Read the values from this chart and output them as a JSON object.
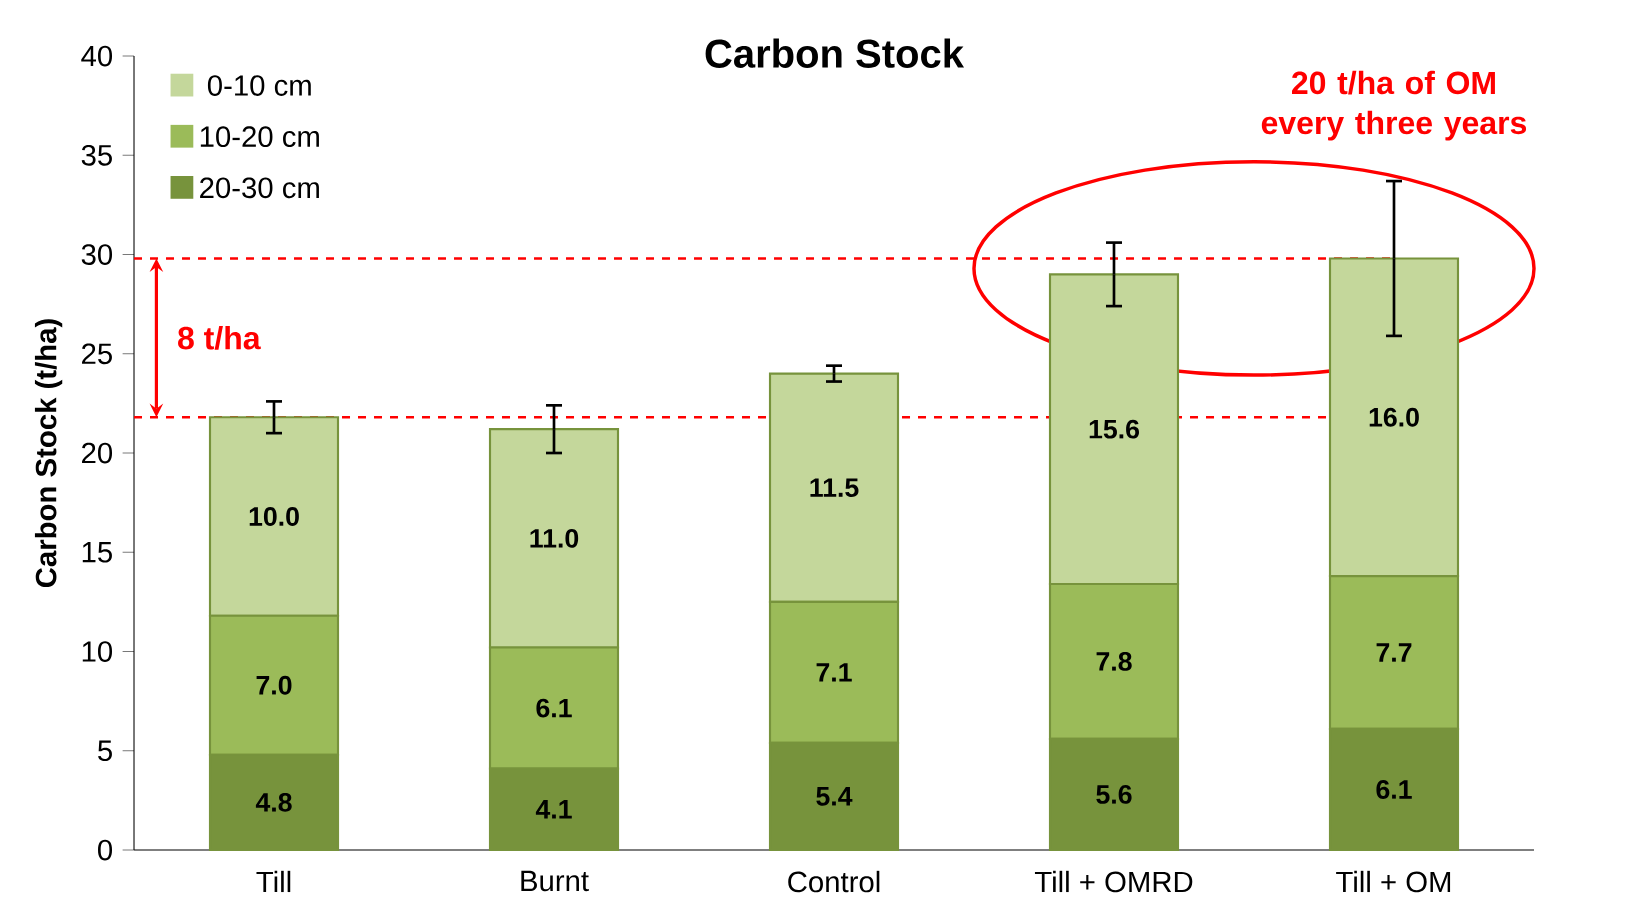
{
  "chart_data": {
    "type": "bar",
    "title": "Carbon Stock",
    "ylabel": "Carbon Stock (t/ha)",
    "categories": [
      "Till",
      "Burnt",
      "Control",
      "Till + OMRD",
      "Till + OM"
    ],
    "stacked": true,
    "series": [
      {
        "name": "20-30 cm",
        "color": "#77933c",
        "values": [
          4.8,
          4.1,
          5.4,
          5.6,
          6.1
        ],
        "value_labels": [
          "4.8",
          "4.1",
          "5.4",
          "5.6",
          "6.1"
        ]
      },
      {
        "name": "10-20 cm",
        "color": "#9bbb59",
        "values": [
          7.0,
          6.1,
          7.1,
          7.8,
          7.7
        ],
        "value_labels": [
          "7.0",
          "6.1",
          "7.1",
          "7.8",
          "7.7"
        ]
      },
      {
        "name": "0-10 cm",
        "color": "#c4d79b",
        "values": [
          10.0,
          11.0,
          11.5,
          15.6,
          16.0
        ],
        "value_labels": [
          "10.0",
          "11.0",
          "11.5",
          "15.6",
          "16.0"
        ],
        "errors": [
          0.8,
          1.2,
          0.4,
          1.6,
          3.9
        ]
      }
    ],
    "ylim": [
      0,
      40
    ],
    "yticks": [
      0,
      5,
      10,
      15,
      20,
      25,
      30,
      35,
      40
    ],
    "legend": "top left",
    "grid": false,
    "ref_lines": [
      {
        "axis": "y",
        "value": 29.8,
        "color": "#ff0000",
        "line_style": "dashed"
      },
      {
        "axis": "y",
        "value": 21.8,
        "color": "#ff0000",
        "line_style": "dashed"
      }
    ],
    "annotations": [
      "8 t/ha",
      "20 t/ha of OM every three years"
    ]
  }
}
